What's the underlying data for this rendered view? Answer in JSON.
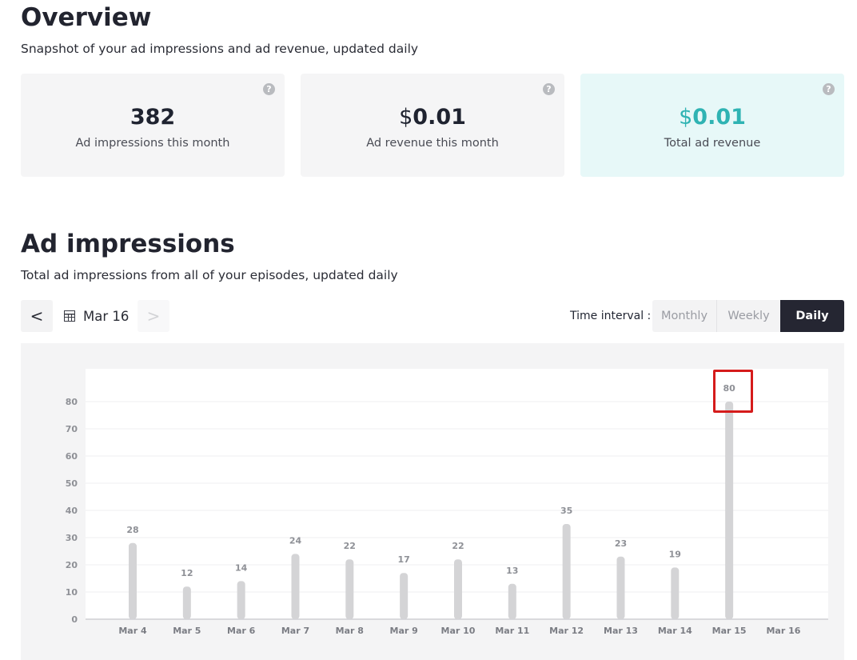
{
  "overview": {
    "title": "Overview",
    "subtitle": "Snapshot of your ad impressions and ad revenue, updated daily",
    "cards": [
      {
        "currency": "",
        "amount": "382",
        "label": "Ad impressions this month"
      },
      {
        "currency": "$",
        "amount": "0.01",
        "label": "Ad revenue this month"
      },
      {
        "currency": "$",
        "amount": "0.01",
        "label": "Total ad revenue"
      }
    ],
    "help_glyph": "?"
  },
  "impressions": {
    "title": "Ad impressions",
    "subtitle": "Total ad impressions from all of your episodes, updated daily",
    "date_label": "Mar 16",
    "prev_glyph": "<",
    "next_glyph": ">",
    "interval_label": "Time interval :",
    "intervals": [
      "Monthly",
      "Weekly",
      "Daily"
    ],
    "selected_interval": "Daily"
  },
  "colors": {
    "accent_teal": "#2fb3b3",
    "bar": "#d4d4d6",
    "selected": "#252632",
    "highlight": "#d51b1b"
  },
  "chart_data": {
    "type": "bar",
    "categories": [
      "Mar 4",
      "Mar 5",
      "Mar 6",
      "Mar 7",
      "Mar 8",
      "Mar 9",
      "Mar 10",
      "Mar 11",
      "Mar 12",
      "Mar 13",
      "Mar 14",
      "Mar 15",
      "Mar 16"
    ],
    "values": [
      28,
      12,
      14,
      24,
      22,
      17,
      22,
      13,
      35,
      23,
      19,
      80,
      null
    ],
    "data_labels": [
      "28",
      "12",
      "14",
      "24",
      "22",
      "17",
      "22",
      "13",
      "35",
      "23",
      "19",
      "80",
      ""
    ],
    "yticks": [
      0,
      10,
      20,
      30,
      40,
      50,
      60,
      70,
      80
    ],
    "ylim": [
      0,
      92
    ],
    "grid": true,
    "highlighted_category": "Mar 15"
  }
}
